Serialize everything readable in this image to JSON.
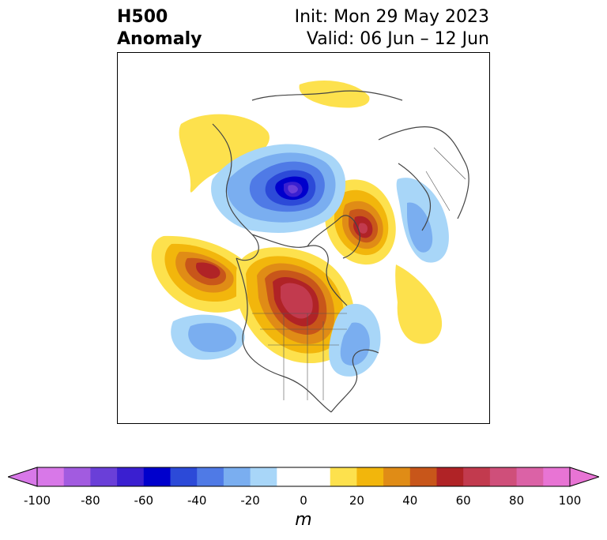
{
  "header": {
    "title_line1": "H500",
    "title_line2": "Anomaly",
    "init_label": "Init: Mon 29 May 2023",
    "valid_label": "Valid: 06 Jun – 12 Jun"
  },
  "colorbar": {
    "unit": "m",
    "ticks": [
      "-100",
      "-80",
      "-60",
      "-40",
      "-20",
      "0",
      "20",
      "40",
      "60",
      "80",
      "100"
    ],
    "bins": [
      {
        "from": -100,
        "to": -90,
        "color": "#d878e8"
      },
      {
        "from": -90,
        "to": -80,
        "color": "#a25be0"
      },
      {
        "from": -80,
        "to": -70,
        "color": "#6a3fd8"
      },
      {
        "from": -70,
        "to": -60,
        "color": "#3a1fd0"
      },
      {
        "from": -60,
        "to": -50,
        "color": "#0000cc"
      },
      {
        "from": -50,
        "to": -40,
        "color": "#2c4ad8"
      },
      {
        "from": -40,
        "to": -30,
        "color": "#4f7ae6"
      },
      {
        "from": -30,
        "to": -20,
        "color": "#7aaef0"
      },
      {
        "from": -20,
        "to": -10,
        "color": "#a8d6f8"
      },
      {
        "from": -10,
        "to": 0,
        "color": "#ffffff"
      },
      {
        "from": 0,
        "to": 10,
        "color": "#ffffff"
      },
      {
        "from": 10,
        "to": 20,
        "color": "#fde14d"
      },
      {
        "from": 20,
        "to": 30,
        "color": "#f2b60c"
      },
      {
        "from": 30,
        "to": 40,
        "color": "#e08c16"
      },
      {
        "from": 40,
        "to": 50,
        "color": "#c8561a"
      },
      {
        "from": 50,
        "to": 60,
        "color": "#b02326"
      },
      {
        "from": 60,
        "to": 70,
        "color": "#c23a4e"
      },
      {
        "from": 70,
        "to": 80,
        "color": "#cf4f7a"
      },
      {
        "from": 80,
        "to": 90,
        "color": "#db62a6"
      },
      {
        "from": 90,
        "to": 100,
        "color": "#e874d4"
      }
    ],
    "under_color": "#d878e8",
    "over_color": "#e874d4"
  },
  "map": {
    "projection": "north polar stereographic",
    "region": "Northern Hemisphere (North America centered)",
    "field": "500 hPa geopotential height anomaly",
    "features": [
      {
        "name": "negative-center-arctic",
        "value": -90
      },
      {
        "name": "positive-center-western-canada",
        "value": 80
      },
      {
        "name": "positive-center-greenland-sea",
        "value": 60
      },
      {
        "name": "positive-center-north-pacific",
        "value": 60
      },
      {
        "name": "negative-center-northeast-pacific",
        "value": -40
      },
      {
        "name": "negative-center-northwest-atlantic",
        "value": -30
      }
    ]
  }
}
